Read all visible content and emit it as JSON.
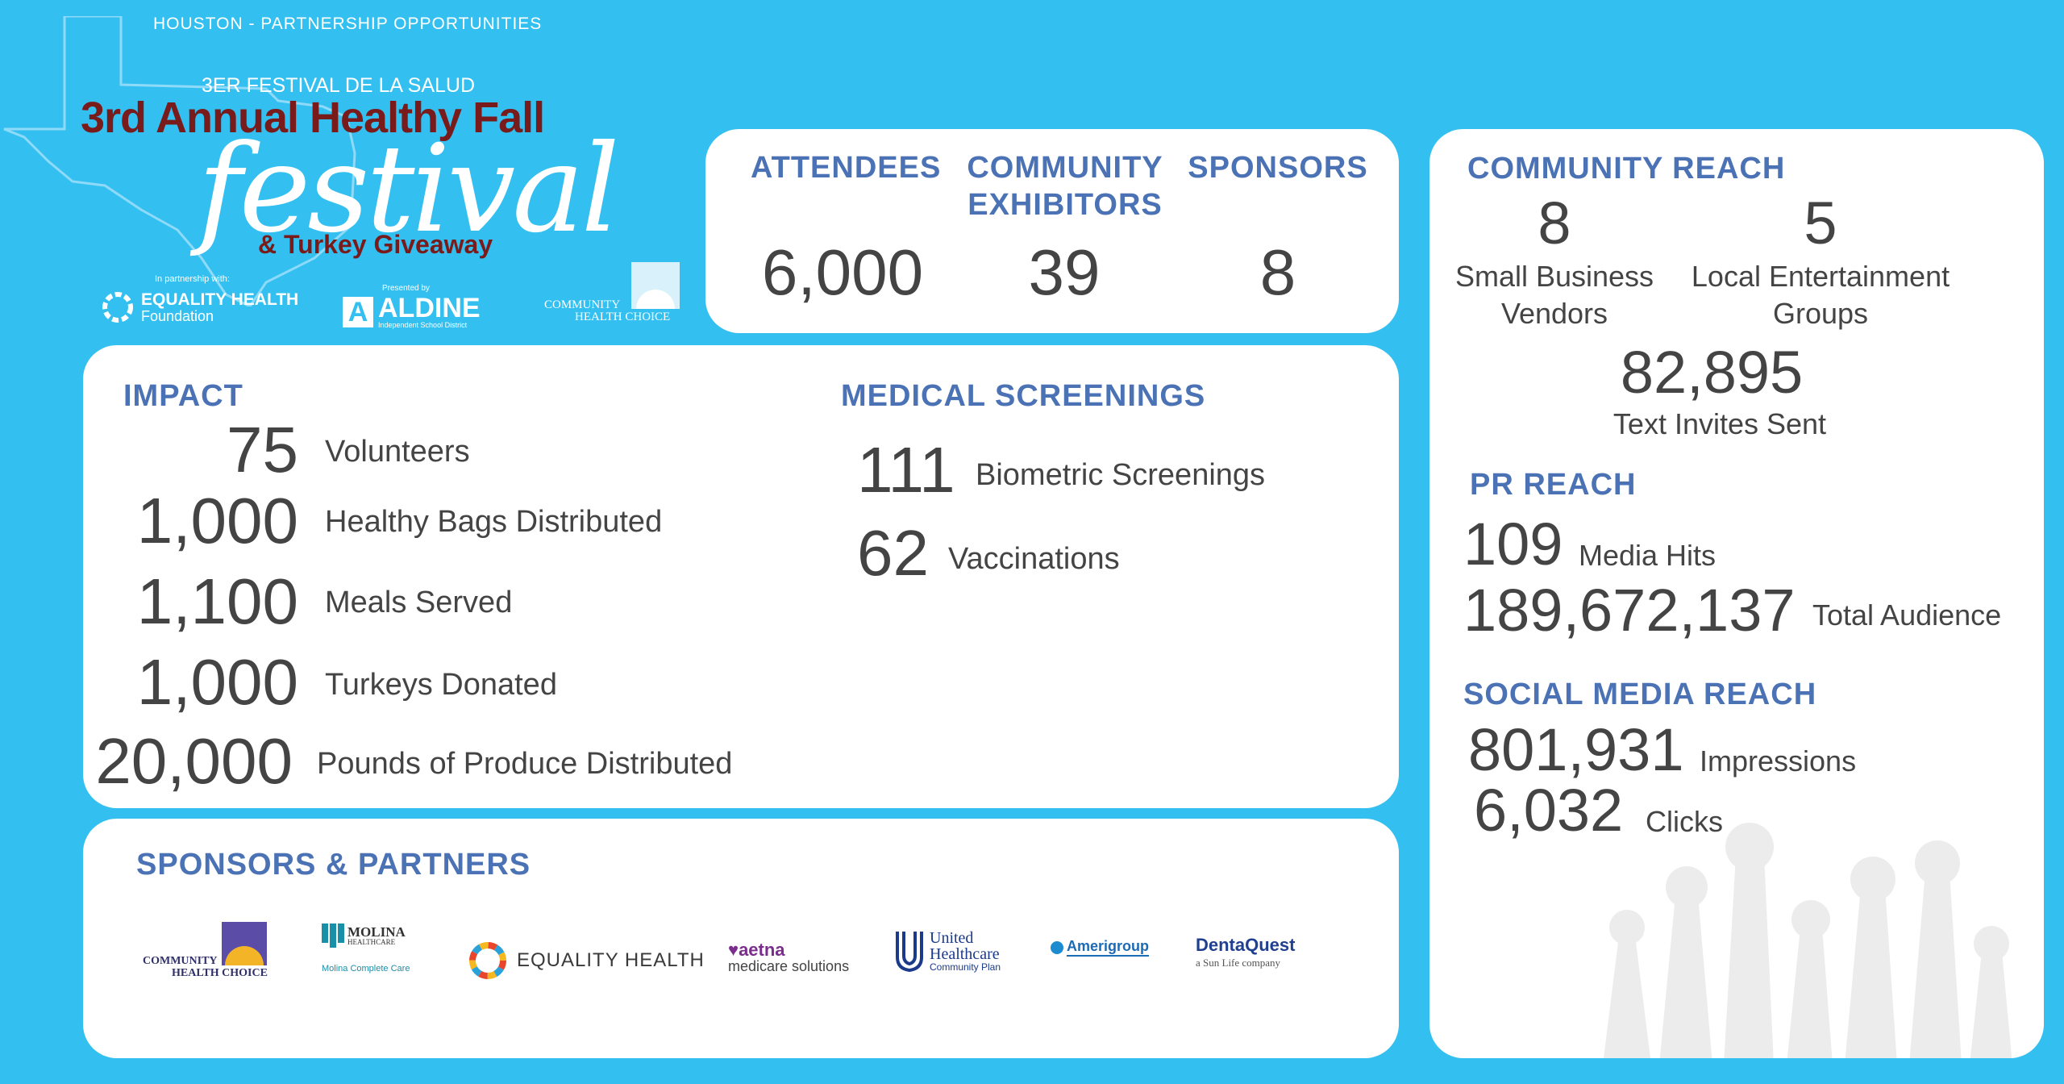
{
  "header": {
    "top_label": "HOUSTON - PARTNERSHIP OPPORTUNITIES",
    "festival_sub": "3ER FESTIVAL DE LA SALUD",
    "festival_title": "3rd Annual Healthy Fall",
    "festival_script": "festival",
    "festival_turkey": "& Turkey Giveaway",
    "partnership_prefix": "In partnership with:",
    "eh_logo_line1": "EQUALITY HEALTH",
    "eh_logo_line2": "Foundation",
    "presented_prefix": "Presented by",
    "aldine_name": "ALDINE",
    "aldine_sub": "Independent School District",
    "chc_line1": "COMMUNITY",
    "chc_line2": "HEALTH CHOICE"
  },
  "stats": {
    "attendees_label": "ATTENDEES",
    "attendees_value": "6,000",
    "exhibitors_label_1": "COMMUNITY",
    "exhibitors_label_2": "EXHIBITORS",
    "exhibitors_value": "39",
    "sponsors_label": "SPONSORS",
    "sponsors_value": "8"
  },
  "impact": {
    "title": "IMPACT",
    "rows": [
      {
        "value": "75",
        "label": "Volunteers"
      },
      {
        "value": "1,000",
        "label": "Healthy Bags Distributed"
      },
      {
        "value": "1,100",
        "label": "Meals Served"
      },
      {
        "value": "1,000",
        "label": "Turkeys Donated"
      },
      {
        "value": "20,000",
        "label": "Pounds of Produce Distributed"
      }
    ]
  },
  "medical": {
    "title": "MEDICAL SCREENINGS",
    "rows": [
      {
        "value": "111",
        "label": "Biometric Screenings"
      },
      {
        "value": "62",
        "label": "Vaccinations"
      }
    ]
  },
  "sponsors": {
    "title": "SPONSORS & PARTNERS",
    "chc_1": "COMMUNITY",
    "chc_2": "HEALTH CHOICE",
    "molina_1": "MOLINA",
    "molina_2": "HEALTHCARE",
    "molina_3": "Molina Complete Care",
    "equality": "EQUALITY HEALTH",
    "aetna_1": "aetna",
    "aetna_2": "medicare solutions",
    "uhc_1": "United",
    "uhc_2": "Healthcare",
    "uhc_3": "Community Plan",
    "amerigroup": "Amerigroup",
    "dentaquest_1": "DentaQuest",
    "dentaquest_2": "a Sun Life company"
  },
  "community_reach": {
    "title": "COMMUNITY REACH",
    "vendors_value": "8",
    "vendors_label_1": "Small Business",
    "vendors_label_2": "Vendors",
    "groups_value": "5",
    "groups_label_1": "Local Entertainment",
    "groups_label_2": "Groups",
    "invites_value": "82,895",
    "invites_label": "Text Invites Sent"
  },
  "pr_reach": {
    "title": "PR REACH",
    "hits_value": "109",
    "hits_label": "Media Hits",
    "audience_value": "189,672,137",
    "audience_label": "Total Audience"
  },
  "social_reach": {
    "title": "SOCIAL MEDIA REACH",
    "impressions_value": "801,931",
    "impressions_label": "Impressions",
    "clicks_value": "6,032",
    "clicks_label": "Clicks"
  },
  "colors": {
    "background": "#33c0f0",
    "heading": "#4a72b4",
    "title_red": "#7a1b1b",
    "text": "#444444"
  }
}
